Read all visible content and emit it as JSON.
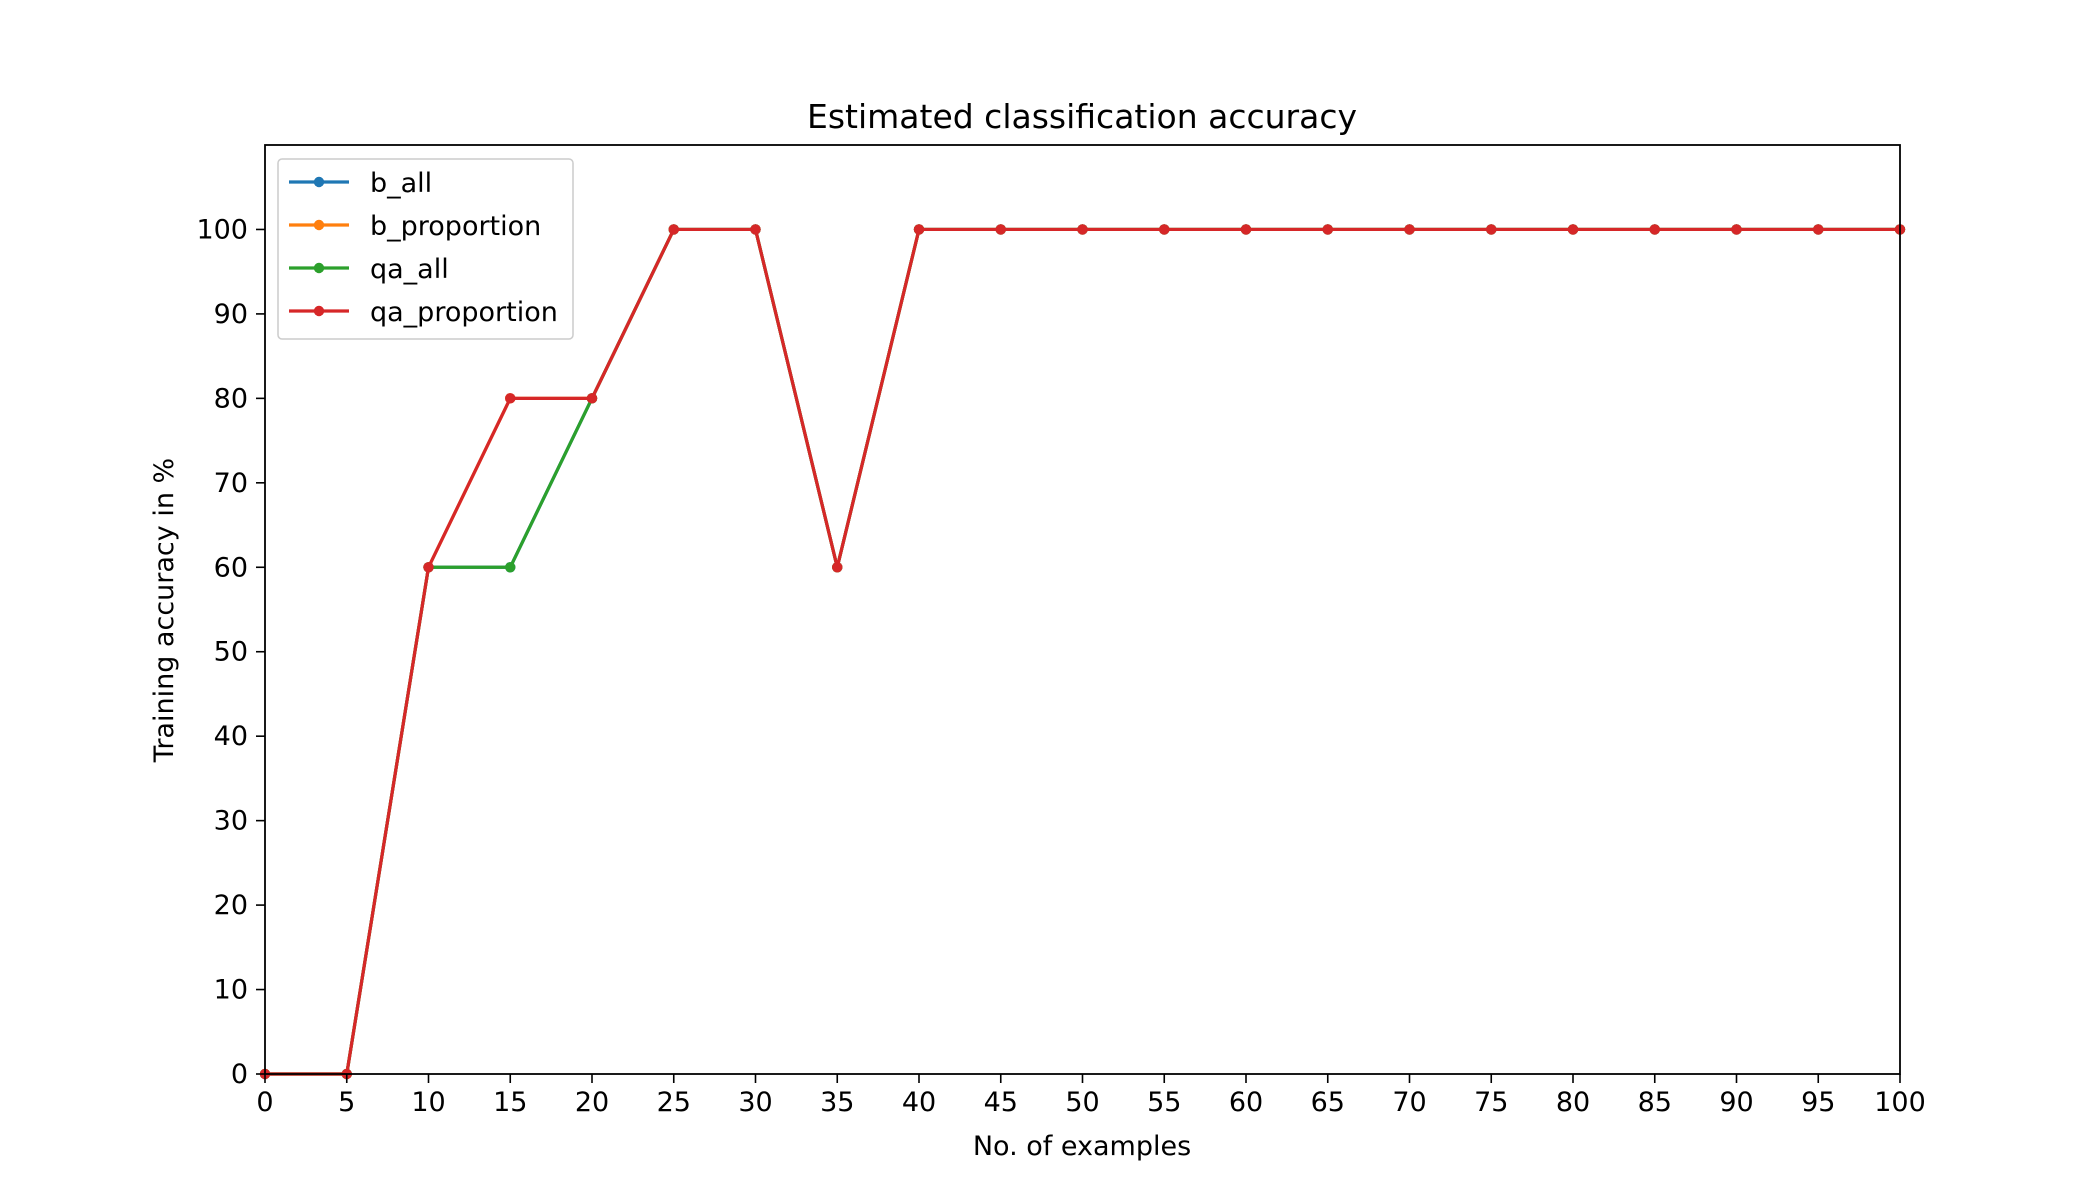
{
  "chart_data": {
    "type": "line",
    "title": "Estimated classification accuracy",
    "xlabel": "No. of examples",
    "ylabel": "Training accuracy in %",
    "x": [
      0,
      5,
      10,
      15,
      20,
      25,
      30,
      35,
      40,
      45,
      50,
      55,
      60,
      65,
      70,
      75,
      80,
      85,
      90,
      95,
      100
    ],
    "xlim": [
      0,
      100
    ],
    "ylim": [
      0,
      110
    ],
    "xticks": [
      0,
      5,
      10,
      15,
      20,
      25,
      30,
      35,
      40,
      45,
      50,
      55,
      60,
      65,
      70,
      75,
      80,
      85,
      90,
      95,
      100
    ],
    "yticks": [
      0,
      10,
      20,
      30,
      40,
      50,
      60,
      70,
      80,
      90,
      100
    ],
    "grid": false,
    "legend_position": "top-left",
    "series": [
      {
        "name": "b_all",
        "color": "#1f77b4",
        "marker": "circle",
        "values": [
          0,
          0,
          60,
          60,
          80,
          100,
          100,
          60,
          100,
          100,
          100,
          100,
          100,
          100,
          100,
          100,
          100,
          100,
          100,
          100,
          100
        ]
      },
      {
        "name": "b_proportion",
        "color": "#ff7f0e",
        "marker": "circle",
        "values": [
          0,
          0,
          60,
          80,
          80,
          100,
          100,
          60,
          100,
          100,
          100,
          100,
          100,
          100,
          100,
          100,
          100,
          100,
          100,
          100,
          100
        ]
      },
      {
        "name": "qa_all",
        "color": "#2ca02c",
        "marker": "circle",
        "values": [
          0,
          0,
          60,
          60,
          80,
          100,
          100,
          60,
          100,
          100,
          100,
          100,
          100,
          100,
          100,
          100,
          100,
          100,
          100,
          100,
          100
        ]
      },
      {
        "name": "qa_proportion",
        "color": "#d62728",
        "marker": "circle",
        "values": [
          0,
          0,
          60,
          80,
          80,
          100,
          100,
          60,
          100,
          100,
          100,
          100,
          100,
          100,
          100,
          100,
          100,
          100,
          100,
          100,
          100
        ]
      }
    ]
  }
}
